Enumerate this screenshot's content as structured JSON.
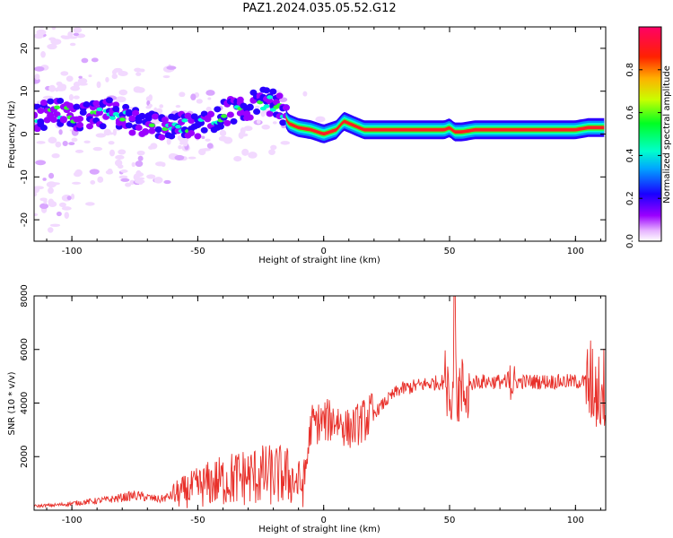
{
  "title": "PAZ1.2024.035.05.52.G12",
  "chart_data": [
    {
      "type": "heatmap",
      "xlabel": "Height of straight line (km)",
      "ylabel": "Frequency (Hz)",
      "xlim": [
        -115,
        112
      ],
      "ylim": [
        -25,
        25
      ],
      "x_ticks": [
        -100,
        -50,
        0,
        50,
        100
      ],
      "y_ticks": [
        -20,
        -10,
        0,
        10,
        20
      ],
      "colorbar": {
        "label": "Normalized spectral amplitude",
        "range": [
          0,
          1
        ],
        "ticks": [
          "0.0",
          "0.2",
          "0.4",
          "0.6",
          "0.8"
        ],
        "colormap": "gist_rainbow_r"
      },
      "ridge": {
        "x": [
          -115,
          -105,
          -95,
          -85,
          -75,
          -65,
          -55,
          -45,
          -35,
          -25,
          -18,
          -14,
          -10,
          -5,
          0,
          5,
          8,
          12,
          16,
          20,
          30,
          40,
          48,
          50,
          52,
          55,
          60,
          70,
          80,
          90,
          100,
          105,
          110,
          112
        ],
        "y": [
          4,
          5,
          4,
          5,
          3,
          2,
          2,
          3,
          6,
          7.5,
          7,
          2.5,
          1.5,
          1,
          0,
          1,
          3,
          2,
          1,
          1,
          1,
          1,
          1,
          1.5,
          0.5,
          0.5,
          1,
          1,
          1,
          1,
          1,
          1.5,
          1.5,
          1.5
        ]
      }
    },
    {
      "type": "line",
      "xlabel": "Height of straight line (km)",
      "ylabel": "SNR (10 * v/v)",
      "xlim": [
        -115,
        112
      ],
      "ylim": [
        0,
        8000
      ],
      "x_ticks": [
        -100,
        -50,
        0,
        50,
        100
      ],
      "y_ticks": [
        2000,
        4000,
        6000,
        8000
      ],
      "color": "#e8302a",
      "series": [
        {
          "x": [
            -115,
            -105,
            -95,
            -85,
            -75,
            -65,
            -55,
            -45,
            -35,
            -25,
            -15,
            -8,
            -5,
            0,
            5,
            10,
            15,
            20,
            25,
            30,
            40,
            48,
            52,
            55,
            60,
            70,
            80,
            90,
            100,
            105,
            110,
            112
          ],
          "y": [
            150,
            200,
            300,
            400,
            550,
            400,
            700,
            1000,
            1200,
            1300,
            1300,
            900,
            3200,
            3300,
            3400,
            3000,
            3300,
            3600,
            4100,
            4500,
            4700,
            4800,
            4500,
            4400,
            4800,
            4800,
            4800,
            4800,
            4800,
            4800,
            4500,
            4500
          ]
        }
      ]
    }
  ]
}
